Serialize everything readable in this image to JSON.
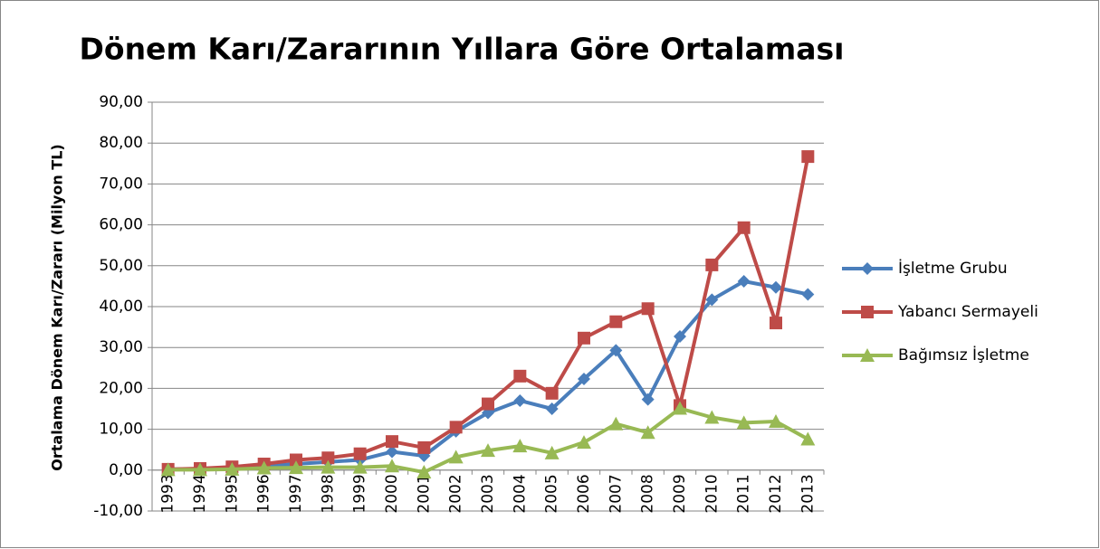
{
  "chart_data": {
    "type": "line",
    "title": "Dönem Karı/Zararının Yıllara Göre Ortalaması",
    "y_label": "Ortalama Dönem Karı/Zararı (Milyon TL)",
    "categories": [
      "1993",
      "1994",
      "1995",
      "1996",
      "1997",
      "1998",
      "1999",
      "2000",
      "2001",
      "2002",
      "2003",
      "2004",
      "2005",
      "2006",
      "2007",
      "2008",
      "2009",
      "2010",
      "2011",
      "2012",
      "2013"
    ],
    "series": [
      {
        "name": "İşletme Grubu",
        "color": "#4a7ebb",
        "marker": "diamond",
        "values": [
          0.2,
          0.3,
          0.5,
          1.0,
          1.5,
          2.0,
          2.5,
          4.5,
          3.5,
          9.5,
          14.0,
          17.0,
          15.0,
          22.3,
          29.3,
          17.3,
          32.7,
          41.7,
          46.2,
          44.7,
          43.0
        ]
      },
      {
        "name": "Yabancı Sermayeli",
        "color": "#be4b48",
        "marker": "square",
        "values": [
          0.2,
          0.4,
          0.8,
          1.5,
          2.5,
          3.0,
          4.0,
          7.0,
          5.5,
          10.5,
          16.2,
          23.0,
          18.8,
          32.3,
          36.3,
          39.5,
          15.8,
          50.2,
          59.3,
          36.0,
          76.7
        ]
      },
      {
        "name": "Bağımsız İşletme",
        "color": "#98b954",
        "marker": "triangle",
        "values": [
          0.1,
          0.1,
          0.2,
          0.5,
          0.6,
          0.7,
          0.7,
          1.0,
          -0.5,
          3.2,
          4.8,
          5.9,
          4.2,
          6.8,
          11.3,
          9.2,
          15.1,
          12.9,
          11.6,
          11.9,
          7.6
        ]
      }
    ],
    "ylim": [
      -10,
      90
    ],
    "yticks": [
      {
        "value": -10,
        "label": "-10,00"
      },
      {
        "value": 0,
        "label": "0,00"
      },
      {
        "value": 10,
        "label": "10,00"
      },
      {
        "value": 20,
        "label": "20,00"
      },
      {
        "value": 30,
        "label": "30,00"
      },
      {
        "value": 40,
        "label": "40,00"
      },
      {
        "value": 50,
        "label": "50,00"
      },
      {
        "value": 60,
        "label": "60,00"
      },
      {
        "value": 70,
        "label": "70,00"
      },
      {
        "value": 80,
        "label": "80,00"
      },
      {
        "value": 90,
        "label": "90,00"
      }
    ],
    "grid": true,
    "legend": "right"
  }
}
